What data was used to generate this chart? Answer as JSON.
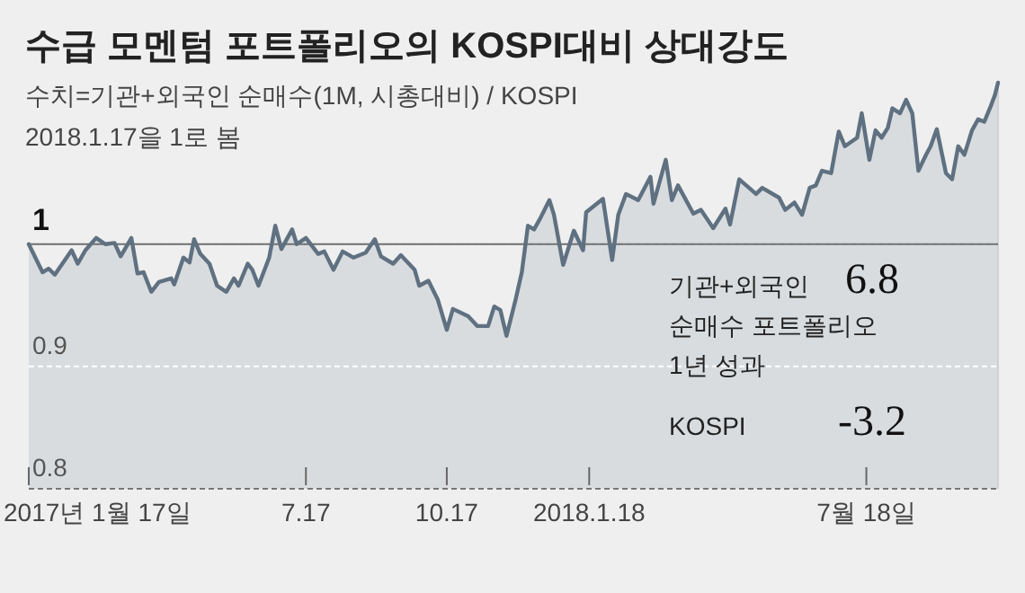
{
  "chart_data": {
    "type": "area",
    "title": "수급 모멘텀 포트폴리오의 KOSPI대비 상대강도",
    "subtitle": "수치=기관+외국인 순매수(1M, 시총대비) / KOSPI",
    "annotations": [
      "2018.1.17을 1로 봄",
      "기관+외국인 순매수 포트폴리오 1년 성과",
      "6.8",
      "KOSPI",
      "-3.2"
    ],
    "x": [
      "2017-01-17",
      "2017-01-26",
      "2017-01-30",
      "2017-02-03",
      "2017-02-14",
      "2017-02-18",
      "2017-02-23",
      "2017-03-02",
      "2017-03-08",
      "2017-03-14",
      "2017-03-18",
      "2017-03-25",
      "2017-03-29",
      "2017-04-02",
      "2017-04-07",
      "2017-04-12",
      "2017-04-20",
      "2017-04-22",
      "2017-04-28",
      "2017-05-02",
      "2017-05-05",
      "2017-05-09",
      "2017-05-15",
      "2017-05-20",
      "2017-05-26",
      "2017-05-31",
      "2017-06-03",
      "2017-06-09",
      "2017-06-12",
      "2017-06-16",
      "2017-06-23",
      "2017-06-27",
      "2017-07-01",
      "2017-07-08",
      "2017-07-11",
      "2017-07-17",
      "2017-07-25",
      "2017-07-29",
      "2017-08-04",
      "2017-08-10",
      "2017-08-17",
      "2017-08-25",
      "2017-08-31",
      "2017-09-04",
      "2017-09-12",
      "2017-09-17",
      "2017-09-26",
      "2017-09-29",
      "2017-10-05",
      "2017-10-11",
      "2017-10-17",
      "2017-10-21",
      "2017-10-31",
      "2017-11-06",
      "2017-11-13",
      "2017-11-17",
      "2017-11-21",
      "2017-11-25",
      "2017-12-01",
      "2017-12-05",
      "2017-12-09",
      "2017-12-13",
      "2017-12-17",
      "2017-12-23",
      "2017-12-26",
      "2018-01-01",
      "2018-01-08",
      "2018-01-14",
      "2018-01-16",
      "2018-01-27",
      "2018-02-02",
      "2018-02-06",
      "2018-02-11",
      "2018-02-19",
      "2018-02-27",
      "2018-03-01",
      "2018-03-09",
      "2018-03-13",
      "2018-03-17",
      "2018-03-27",
      "2018-04-01",
      "2018-04-09",
      "2018-04-17",
      "2018-04-20",
      "2018-04-26",
      "2018-05-07",
      "2018-05-11",
      "2018-05-22",
      "2018-05-26",
      "2018-06-01",
      "2018-06-06",
      "2018-06-11",
      "2018-06-15",
      "2018-06-19",
      "2018-06-25",
      "2018-06-30",
      "2018-07-04",
      "2018-07-12",
      "2018-07-15",
      "2018-07-20",
      "2018-07-24",
      "2018-07-28",
      "2018-08-01",
      "2018-08-04",
      "2018-08-09",
      "2018-08-13",
      "2018-08-17",
      "2018-08-21",
      "2018-08-26",
      "2018-08-29",
      "2018-09-02",
      "2018-09-08",
      "2018-09-12",
      "2018-09-16",
      "2018-09-20",
      "2018-09-25",
      "2018-09-29",
      "2018-10-03",
      "2018-10-07",
      "2018-10-10",
      "2018-10-12"
    ],
    "series": [
      {
        "color": "#5f7181",
        "values": [
          1.0,
          0.977,
          0.98,
          0.975,
          0.995,
          0.984,
          0.995,
          1.005,
          1.0,
          1.001,
          0.99,
          1.005,
          0.976,
          0.977,
          0.961,
          0.969,
          0.972,
          0.967,
          0.989,
          0.985,
          1.004,
          0.992,
          0.984,
          0.966,
          0.961,
          0.972,
          0.966,
          0.984,
          0.979,
          0.966,
          0.989,
          1.015,
          0.996,
          1.012,
          1.0,
          1.005,
          0.992,
          0.994,
          0.979,
          0.994,
          0.989,
          0.993,
          1.004,
          0.99,
          0.984,
          0.991,
          0.979,
          0.966,
          0.97,
          0.955,
          0.93,
          0.947,
          0.941,
          0.933,
          0.933,
          0.949,
          0.946,
          0.925,
          0.955,
          0.977,
          1.015,
          1.012,
          1.021,
          1.036,
          1.024,
          0.983,
          1.011,
          0.995,
          1.026,
          1.037,
          0.987,
          1.024,
          1.041,
          1.036,
          1.055,
          1.033,
          1.069,
          1.036,
          1.048,
          1.025,
          1.028,
          1.013,
          1.029,
          1.016,
          1.053,
          1.041,
          1.046,
          1.038,
          1.028,
          1.034,
          1.024,
          1.046,
          1.048,
          1.06,
          1.058,
          1.092,
          1.08,
          1.087,
          1.107,
          1.069,
          1.093,
          1.087,
          1.095,
          1.111,
          1.107,
          1.118,
          1.107,
          1.06,
          1.073,
          1.08,
          1.094,
          1.058,
          1.053,
          1.08,
          1.073,
          1.093,
          1.102,
          1.1,
          1.112,
          1.122,
          1.132
        ]
      }
    ],
    "xlim": [
      "2017-01-17",
      "2018-10-12"
    ],
    "xticks": [
      {
        "value": "2017-01-17",
        "label": "2017년 1월 17일"
      },
      {
        "value": "2017-07-17",
        "label": "7.17"
      },
      {
        "value": "2017-10-17",
        "label": "10.17"
      },
      {
        "value": "2018-01-18",
        "label": "2018.1.18"
      },
      {
        "value": "2018-07-18",
        "label": "7월 18일"
      }
    ],
    "ylim": [
      0.8,
      1.132
    ],
    "yticks": [
      0.8,
      0.9,
      1
    ],
    "grid": "y",
    "ref_lines": [
      {
        "axis": "y",
        "value": 1,
        "color": "#6e6e6e"
      }
    ]
  }
}
